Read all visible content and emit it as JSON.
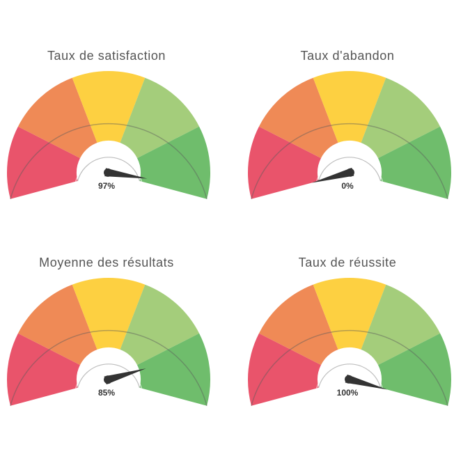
{
  "colors": {
    "red": "#e9546b",
    "orange": "#ef8a56",
    "yellow": "#fdd041",
    "light_green": "#a4cd7b",
    "green": "#6fbd6c",
    "needle": "#333333",
    "title": "#555555"
  },
  "chart_data": [
    {
      "type": "gauge",
      "title": "Taux de satisfaction",
      "value": 97,
      "label": "97%",
      "min": 0,
      "max": 100,
      "bands": [
        "red",
        "orange",
        "yellow",
        "light_green",
        "green"
      ]
    },
    {
      "type": "gauge",
      "title": "Taux d'abandon",
      "value": 0,
      "label": "0%",
      "min": 0,
      "max": 100,
      "bands": [
        "red",
        "orange",
        "yellow",
        "light_green",
        "green"
      ]
    },
    {
      "type": "gauge",
      "title": "Moyenne des résultats",
      "value": 85,
      "label": "85%",
      "min": 0,
      "max": 100,
      "bands": [
        "red",
        "orange",
        "yellow",
        "light_green",
        "green"
      ]
    },
    {
      "type": "gauge",
      "title": "Taux de réussite",
      "value": 100,
      "label": "100%",
      "min": 0,
      "max": 100,
      "bands": [
        "red",
        "orange",
        "yellow",
        "light_green",
        "green"
      ]
    }
  ]
}
